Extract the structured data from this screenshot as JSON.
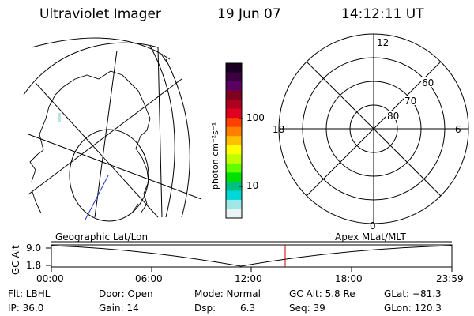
{
  "header": {
    "instrument": "Ultraviolet Imager",
    "date": "19 Jun 07",
    "time": "14:12:11 UT"
  },
  "colorbar": {
    "unit_label": "photon cm⁻²s⁻¹",
    "ticks": [
      "100",
      "10"
    ],
    "colors": [
      "#1a0020",
      "#3a0040",
      "#5a0060",
      "#800020",
      "#b00020",
      "#e00020",
      "#ff4000",
      "#ff8000",
      "#ffc000",
      "#ffff00",
      "#c0ff00",
      "#60ff00",
      "#00e000",
      "#00c080",
      "#00d8d8",
      "#a0e8e8",
      "#e8f4f4"
    ]
  },
  "left_map": {
    "caption": "Geographic Lat/Lon"
  },
  "right_map": {
    "caption": "Apex MLat/MLT",
    "mlt_labels": {
      "top": "12",
      "left": "18",
      "right": "6",
      "bottom": "0"
    },
    "mlat_labels": [
      "60",
      "70",
      "80"
    ]
  },
  "timeline": {
    "axis_label": "GC Alt",
    "y_ticks": [
      "9.0",
      "1.8"
    ],
    "x_ticks": [
      "00:00",
      "06:00",
      "12:00",
      "18:00",
      "23:59"
    ],
    "current_marker_color": "#c00000"
  },
  "status": {
    "filter": "Flt: LBHL",
    "ip": "IP: 36.0",
    "door": "Door: Open",
    "gain": "Gain: 14",
    "mode": "Mode: Normal",
    "dsp_label": "Dsp:",
    "dsp_value": "6.3",
    "gc_alt": "GC Alt: 5.8 Re",
    "seq": "Seq: 39",
    "glat": "GLat: −81.3",
    "glon": "GLon: 120.3"
  }
}
